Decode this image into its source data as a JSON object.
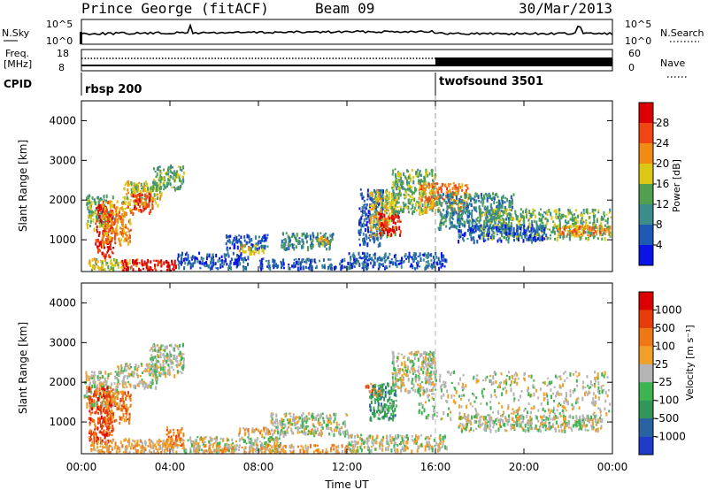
{
  "header": {
    "station": "Prince George (fitACF)",
    "beam": "Beam 09",
    "date": "30/Mar/2013"
  },
  "summary_panels": {
    "nsky_label": "N.Sky",
    "nsky_ticks": [
      "10^5",
      "10^0"
    ],
    "nsearch_label": "N.Search",
    "nsearch_ticks": [
      "10^5",
      "10^0"
    ],
    "freq_label": "Freq.",
    "freq_unit": "[MHz]",
    "freq_ticks": [
      "18",
      "8"
    ],
    "nave_label": "Nave",
    "nave_ticks": [
      "60",
      "0"
    ],
    "cpid_label": "CPID",
    "cpid_segments": [
      {
        "name": "rbsp 200",
        "start_hour": 0
      },
      {
        "name": "twofsound 3501",
        "start_hour": 16
      }
    ]
  },
  "chart_data": [
    {
      "type": "heatmap",
      "title": "",
      "ylabel": "Slant Range [km]",
      "xlabel": "",
      "xlim": [
        0,
        24
      ],
      "ylim": [
        200,
        4500
      ],
      "yticks": [
        "1000",
        "2000",
        "3000",
        "4000"
      ],
      "colorbar": {
        "label": "Power [dB]",
        "ticks": [
          "4",
          "8",
          "12",
          "16",
          "20",
          "24",
          "28"
        ],
        "colors": [
          "#0a14e6",
          "#1e5ab4",
          "#3c8c8c",
          "#50a050",
          "#dcc814",
          "#f08c14",
          "#f04614",
          "#dc0000"
        ]
      },
      "regions": [
        {
          "t0": 0.2,
          "t1": 1.4,
          "r0": 1300,
          "r1": 2150,
          "level": 3
        },
        {
          "t0": 0.6,
          "t1": 1.4,
          "r0": 600,
          "r1": 1900,
          "level": 7
        },
        {
          "t0": 0.9,
          "t1": 2.2,
          "r0": 900,
          "r1": 2000,
          "level": 5
        },
        {
          "t0": 1.8,
          "t1": 3.6,
          "r0": 1900,
          "r1": 2500,
          "level": 4
        },
        {
          "t0": 2.2,
          "t1": 3.2,
          "r0": 1700,
          "r1": 2200,
          "level": 6
        },
        {
          "t0": 3.2,
          "t1": 4.6,
          "r0": 2300,
          "r1": 2900,
          "level": 3
        },
        {
          "t0": 0.3,
          "t1": 2.5,
          "r0": 250,
          "r1": 550,
          "level": 4
        },
        {
          "t0": 1.8,
          "t1": 4.3,
          "r0": 220,
          "r1": 520,
          "level": 7
        },
        {
          "t0": 4.3,
          "t1": 7.5,
          "r0": 300,
          "r1": 700,
          "level": 1
        },
        {
          "t0": 6.5,
          "t1": 8.4,
          "r0": 800,
          "r1": 1150,
          "level": 1
        },
        {
          "t0": 7.0,
          "t1": 8.2,
          "r0": 700,
          "r1": 900,
          "level": 4
        },
        {
          "t0": 9.0,
          "t1": 11.4,
          "r0": 800,
          "r1": 1200,
          "level": 2
        },
        {
          "t0": 10.6,
          "t1": 11.2,
          "r0": 900,
          "r1": 1150,
          "level": 4
        },
        {
          "t0": 8.0,
          "t1": 12.0,
          "r0": 300,
          "r1": 550,
          "level": 1
        },
        {
          "t0": 12.5,
          "t1": 13.6,
          "r0": 900,
          "r1": 2300,
          "level": 1
        },
        {
          "t0": 13.0,
          "t1": 14.2,
          "r0": 1100,
          "r1": 2300,
          "level": 4
        },
        {
          "t0": 13.4,
          "t1": 14.4,
          "r0": 1150,
          "r1": 1700,
          "level": 7
        },
        {
          "t0": 14.0,
          "t1": 16.0,
          "r0": 1700,
          "r1": 2800,
          "level": 3
        },
        {
          "t0": 15.2,
          "t1": 17.5,
          "r0": 1750,
          "r1": 2450,
          "level": 5
        },
        {
          "t0": 16.0,
          "t1": 19.5,
          "r0": 1300,
          "r1": 2200,
          "level": 2
        },
        {
          "t0": 18.0,
          "t1": 23.9,
          "r0": 1050,
          "r1": 1800,
          "level": 3
        },
        {
          "t0": 21.5,
          "t1": 23.9,
          "r0": 1100,
          "r1": 1400,
          "level": 5
        },
        {
          "t0": 17.0,
          "t1": 21.0,
          "r0": 1000,
          "r1": 1400,
          "level": 1
        },
        {
          "t0": 12.0,
          "t1": 16.5,
          "r0": 300,
          "r1": 700,
          "level": 1
        }
      ]
    },
    {
      "type": "heatmap",
      "title": "",
      "ylabel": "Slant Range [km]",
      "xlabel": "Time UT",
      "xlim": [
        0,
        24
      ],
      "ylim": [
        200,
        4500
      ],
      "xticks": [
        "00:00",
        "04:00",
        "08:00",
        "12:00",
        "16:00",
        "20:00",
        "00:00"
      ],
      "yticks": [
        "1000",
        "2000",
        "3000",
        "4000"
      ],
      "colorbar": {
        "label": "Velocity [m s⁻¹]",
        "ticks": [
          "1000",
          "500",
          "100",
          "25",
          "-25",
          "-100",
          "-500",
          "-1000"
        ],
        "colors": [
          "#1e3cc8",
          "#2864a0",
          "#32965a",
          "#3cb450",
          "#b4b4b4",
          "#f0a028",
          "#f07814",
          "#e63c0a",
          "#dc0000"
        ]
      },
      "regions": [
        {
          "t0": 0.1,
          "t1": 1.6,
          "r0": 1400,
          "r1": 2300,
          "level": 4
        },
        {
          "t0": 0.3,
          "t1": 1.4,
          "r0": 500,
          "r1": 1900,
          "level": 7
        },
        {
          "t0": 1.0,
          "t1": 2.2,
          "r0": 1000,
          "r1": 1800,
          "level": 6
        },
        {
          "t0": 1.6,
          "t1": 3.4,
          "r0": 1900,
          "r1": 2500,
          "level": 4
        },
        {
          "t0": 3.0,
          "t1": 4.6,
          "r0": 2200,
          "r1": 3000,
          "level": 4
        },
        {
          "t0": 0.4,
          "t1": 1.8,
          "r0": 250,
          "r1": 550,
          "level": 5
        },
        {
          "t0": 1.6,
          "t1": 4.3,
          "r0": 220,
          "r1": 600,
          "level": 5
        },
        {
          "t0": 3.8,
          "t1": 4.6,
          "r0": 400,
          "r1": 900,
          "level": 6
        },
        {
          "t0": 4.5,
          "t1": 9.0,
          "r0": 300,
          "r1": 650,
          "level": 4
        },
        {
          "t0": 7.0,
          "t1": 8.5,
          "r0": 700,
          "r1": 900,
          "level": 5
        },
        {
          "t0": 8.5,
          "t1": 12.0,
          "r0": 700,
          "r1": 1250,
          "level": 4
        },
        {
          "t0": 12.8,
          "t1": 13.5,
          "r0": 1700,
          "r1": 2000,
          "level": 6
        },
        {
          "t0": 13.0,
          "t1": 14.2,
          "r0": 1100,
          "r1": 2000,
          "level": 2
        },
        {
          "t0": 13.4,
          "t1": 14.0,
          "r0": 1200,
          "r1": 1500,
          "level": 3
        },
        {
          "t0": 14.0,
          "t1": 16.0,
          "r0": 1800,
          "r1": 2800,
          "level": 4
        },
        {
          "t0": 15.2,
          "t1": 23.9,
          "r0": 1100,
          "r1": 2300,
          "level": 4
        },
        {
          "t0": 17.0,
          "t1": 23.5,
          "r0": 800,
          "r1": 1200,
          "level": 4
        },
        {
          "t0": 12.0,
          "t1": 16.5,
          "r0": 300,
          "r1": 700,
          "level": 4
        },
        {
          "t0": 5.0,
          "t1": 12.0,
          "r0": 250,
          "r1": 450,
          "level": 5
        }
      ]
    }
  ]
}
